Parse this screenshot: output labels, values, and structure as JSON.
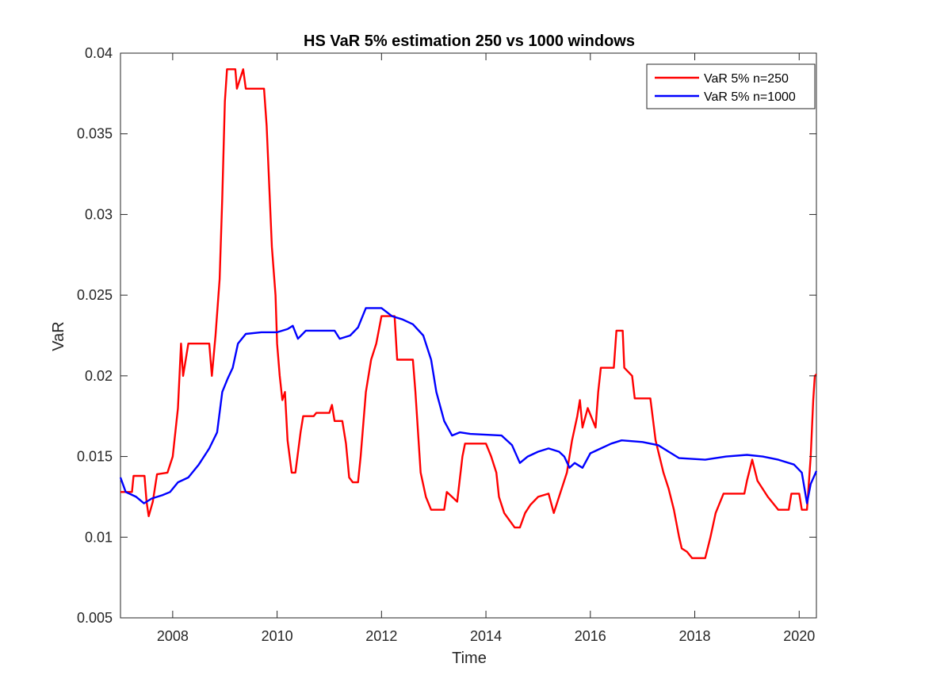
{
  "chart_data": {
    "type": "line",
    "title": "HS VaR 5% estimation 250 vs 1000 windows",
    "xlabel": "Time",
    "ylabel": "VaR",
    "xlim": [
      2007.0,
      2020.33
    ],
    "ylim": [
      0.005,
      0.04
    ],
    "xticks": [
      2008,
      2010,
      2012,
      2014,
      2016,
      2018,
      2020
    ],
    "xtick_labels": [
      "2008",
      "2010",
      "2012",
      "2014",
      "2016",
      "2018",
      "2020"
    ],
    "yticks": [
      0.005,
      0.01,
      0.015,
      0.02,
      0.025,
      0.03,
      0.035,
      0.04
    ],
    "ytick_labels": [
      "0.005",
      "0.01",
      "0.015",
      "0.02",
      "0.025",
      "0.03",
      "0.035",
      "0.04"
    ],
    "grid": false,
    "legend": {
      "location": "top-right"
    },
    "series": [
      {
        "name": "VaR 5% n=250",
        "color": "#ff0000",
        "points": [
          [
            2007.0,
            0.0128
          ],
          [
            2007.22,
            0.0128
          ],
          [
            2007.25,
            0.0138
          ],
          [
            2007.46,
            0.0138
          ],
          [
            2007.5,
            0.0122
          ],
          [
            2007.54,
            0.0113
          ],
          [
            2007.62,
            0.0122
          ],
          [
            2007.7,
            0.0139
          ],
          [
            2007.9,
            0.014
          ],
          [
            2008.0,
            0.015
          ],
          [
            2008.1,
            0.018
          ],
          [
            2008.16,
            0.022
          ],
          [
            2008.2,
            0.02
          ],
          [
            2008.3,
            0.022
          ],
          [
            2008.7,
            0.022
          ],
          [
            2008.75,
            0.02
          ],
          [
            2008.82,
            0.0225
          ],
          [
            2008.9,
            0.026
          ],
          [
            2008.95,
            0.031
          ],
          [
            2009.0,
            0.037
          ],
          [
            2009.04,
            0.039
          ],
          [
            2009.2,
            0.039
          ],
          [
            2009.23,
            0.0378
          ],
          [
            2009.35,
            0.039
          ],
          [
            2009.4,
            0.0378
          ],
          [
            2009.75,
            0.0378
          ],
          [
            2009.8,
            0.0355
          ],
          [
            2009.9,
            0.028
          ],
          [
            2009.97,
            0.025
          ],
          [
            2010.0,
            0.022
          ],
          [
            2010.05,
            0.02
          ],
          [
            2010.1,
            0.0185
          ],
          [
            2010.15,
            0.019
          ],
          [
            2010.2,
            0.016
          ],
          [
            2010.28,
            0.014
          ],
          [
            2010.35,
            0.014
          ],
          [
            2010.45,
            0.0165
          ],
          [
            2010.5,
            0.0175
          ],
          [
            2010.7,
            0.0175
          ],
          [
            2010.75,
            0.0177
          ],
          [
            2011.0,
            0.0177
          ],
          [
            2011.05,
            0.0182
          ],
          [
            2011.1,
            0.0172
          ],
          [
            2011.25,
            0.0172
          ],
          [
            2011.32,
            0.0158
          ],
          [
            2011.38,
            0.0137
          ],
          [
            2011.45,
            0.0134
          ],
          [
            2011.55,
            0.0134
          ],
          [
            2011.6,
            0.015
          ],
          [
            2011.7,
            0.019
          ],
          [
            2011.8,
            0.021
          ],
          [
            2011.9,
            0.022
          ],
          [
            2012.0,
            0.0237
          ],
          [
            2012.25,
            0.0237
          ],
          [
            2012.3,
            0.021
          ],
          [
            2012.6,
            0.021
          ],
          [
            2012.65,
            0.019
          ],
          [
            2012.75,
            0.014
          ],
          [
            2012.85,
            0.0125
          ],
          [
            2012.95,
            0.0117
          ],
          [
            2013.2,
            0.0117
          ],
          [
            2013.25,
            0.0128
          ],
          [
            2013.45,
            0.0122
          ],
          [
            2013.55,
            0.015
          ],
          [
            2013.6,
            0.0158
          ],
          [
            2014.0,
            0.0158
          ],
          [
            2014.1,
            0.015
          ],
          [
            2014.2,
            0.014
          ],
          [
            2014.25,
            0.0125
          ],
          [
            2014.35,
            0.0115
          ],
          [
            2014.55,
            0.0106
          ],
          [
            2014.65,
            0.0106
          ],
          [
            2014.75,
            0.0115
          ],
          [
            2014.85,
            0.012
          ],
          [
            2015.0,
            0.0125
          ],
          [
            2015.2,
            0.0127
          ],
          [
            2015.3,
            0.0115
          ],
          [
            2015.4,
            0.0125
          ],
          [
            2015.55,
            0.014
          ],
          [
            2015.65,
            0.016
          ],
          [
            2015.75,
            0.0175
          ],
          [
            2015.8,
            0.0185
          ],
          [
            2015.85,
            0.0168
          ],
          [
            2015.95,
            0.018
          ],
          [
            2016.1,
            0.0168
          ],
          [
            2016.15,
            0.019
          ],
          [
            2016.2,
            0.0205
          ],
          [
            2016.45,
            0.0205
          ],
          [
            2016.5,
            0.0228
          ],
          [
            2016.62,
            0.0228
          ],
          [
            2016.65,
            0.0205
          ],
          [
            2016.8,
            0.02
          ],
          [
            2016.85,
            0.0186
          ],
          [
            2017.15,
            0.0186
          ],
          [
            2017.25,
            0.016
          ],
          [
            2017.4,
            0.014
          ],
          [
            2017.5,
            0.013
          ],
          [
            2017.6,
            0.0117
          ],
          [
            2017.7,
            0.01
          ],
          [
            2017.75,
            0.0093
          ],
          [
            2017.85,
            0.0091
          ],
          [
            2017.95,
            0.0087
          ],
          [
            2018.2,
            0.0087
          ],
          [
            2018.3,
            0.01
          ],
          [
            2018.4,
            0.0115
          ],
          [
            2018.55,
            0.0127
          ],
          [
            2018.95,
            0.0127
          ],
          [
            2019.0,
            0.0135
          ],
          [
            2019.1,
            0.0148
          ],
          [
            2019.2,
            0.0135
          ],
          [
            2019.4,
            0.0125
          ],
          [
            2019.6,
            0.0117
          ],
          [
            2019.8,
            0.0117
          ],
          [
            2019.85,
            0.0127
          ],
          [
            2020.0,
            0.0127
          ],
          [
            2020.05,
            0.0117
          ],
          [
            2020.15,
            0.0117
          ],
          [
            2020.22,
            0.015
          ],
          [
            2020.27,
            0.0185
          ],
          [
            2020.3,
            0.02
          ],
          [
            2020.33,
            0.0201
          ]
        ]
      },
      {
        "name": "VaR 5% n=1000",
        "color": "#0000ff",
        "points": [
          [
            2007.0,
            0.0137
          ],
          [
            2007.1,
            0.0128
          ],
          [
            2007.3,
            0.0125
          ],
          [
            2007.45,
            0.0121
          ],
          [
            2007.6,
            0.0124
          ],
          [
            2007.8,
            0.0126
          ],
          [
            2007.95,
            0.0128
          ],
          [
            2008.1,
            0.0134
          ],
          [
            2008.3,
            0.0137
          ],
          [
            2008.5,
            0.0145
          ],
          [
            2008.7,
            0.0155
          ],
          [
            2008.85,
            0.0165
          ],
          [
            2008.95,
            0.019
          ],
          [
            2009.05,
            0.0198
          ],
          [
            2009.15,
            0.0205
          ],
          [
            2009.25,
            0.022
          ],
          [
            2009.4,
            0.0226
          ],
          [
            2009.7,
            0.0227
          ],
          [
            2010.0,
            0.0227
          ],
          [
            2010.2,
            0.0229
          ],
          [
            2010.3,
            0.0231
          ],
          [
            2010.4,
            0.0223
          ],
          [
            2010.55,
            0.0228
          ],
          [
            2011.1,
            0.0228
          ],
          [
            2011.2,
            0.0223
          ],
          [
            2011.4,
            0.0225
          ],
          [
            2011.55,
            0.023
          ],
          [
            2011.7,
            0.0242
          ],
          [
            2012.0,
            0.0242
          ],
          [
            2012.2,
            0.0237
          ],
          [
            2012.4,
            0.0235
          ],
          [
            2012.6,
            0.0232
          ],
          [
            2012.8,
            0.0225
          ],
          [
            2012.95,
            0.021
          ],
          [
            2013.05,
            0.019
          ],
          [
            2013.2,
            0.0172
          ],
          [
            2013.35,
            0.0163
          ],
          [
            2013.5,
            0.0165
          ],
          [
            2013.7,
            0.0164
          ],
          [
            2014.3,
            0.0163
          ],
          [
            2014.5,
            0.0157
          ],
          [
            2014.65,
            0.0146
          ],
          [
            2014.8,
            0.015
          ],
          [
            2015.0,
            0.0153
          ],
          [
            2015.2,
            0.0155
          ],
          [
            2015.4,
            0.0153
          ],
          [
            2015.5,
            0.015
          ],
          [
            2015.6,
            0.0143
          ],
          [
            2015.7,
            0.0146
          ],
          [
            2015.85,
            0.0143
          ],
          [
            2016.0,
            0.0152
          ],
          [
            2016.2,
            0.0155
          ],
          [
            2016.4,
            0.0158
          ],
          [
            2016.6,
            0.016
          ],
          [
            2017.0,
            0.0159
          ],
          [
            2017.3,
            0.0157
          ],
          [
            2017.5,
            0.0153
          ],
          [
            2017.7,
            0.0149
          ],
          [
            2018.2,
            0.0148
          ],
          [
            2018.6,
            0.015
          ],
          [
            2019.0,
            0.0151
          ],
          [
            2019.3,
            0.015
          ],
          [
            2019.6,
            0.0148
          ],
          [
            2019.9,
            0.0145
          ],
          [
            2020.05,
            0.014
          ],
          [
            2020.15,
            0.0121
          ],
          [
            2020.22,
            0.0133
          ],
          [
            2020.33,
            0.0141
          ]
        ]
      }
    ]
  }
}
